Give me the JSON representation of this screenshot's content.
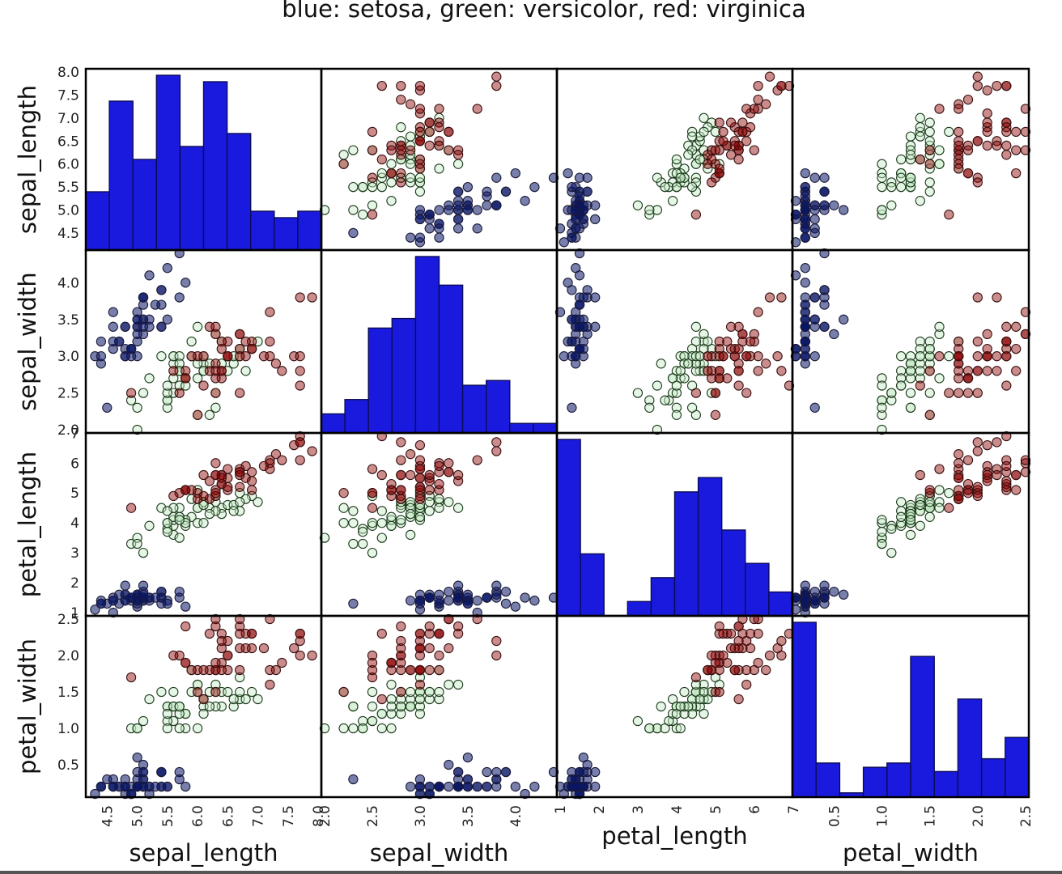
{
  "chart_data": {
    "type": "scatter",
    "title": "blue: setosa, green: versicolor, red: virginica",
    "variables": [
      "sepal_length",
      "sepal_width",
      "petal_length",
      "petal_width"
    ],
    "species_colors": {
      "setosa": "#0a1666",
      "versicolor": "#1f8a1f",
      "virginica": "#8b0000"
    },
    "histogram_color": "#1a1adf",
    "ranges": [
      [
        4.2,
        8.0
      ],
      [
        2.0,
        4.4
      ],
      [
        1.0,
        6.9
      ],
      [
        0.1,
        2.5
      ]
    ],
    "ticks": [
      [
        "4.5",
        "5.0",
        "5.5",
        "6.0",
        "6.5",
        "7.0",
        "7.5",
        "8.0"
      ],
      [
        "2.0",
        "2.5",
        "3.0",
        "3.5",
        "4.0"
      ],
      [
        "1",
        "2",
        "3",
        "4",
        "5",
        "6",
        "7"
      ],
      [
        "0.5",
        "1.0",
        "1.5",
        "2.0",
        "2.5"
      ]
    ],
    "histograms": [
      {
        "variable": "sepal_length",
        "counts": [
          9,
          23,
          14,
          27,
          16,
          26,
          18,
          6,
          5,
          6
        ]
      },
      {
        "variable": "sepal_width",
        "counts": [
          4,
          7,
          22,
          24,
          37,
          31,
          10,
          11,
          2,
          2
        ]
      },
      {
        "variable": "petal_length",
        "counts": [
          37,
          13,
          0,
          3,
          8,
          26,
          29,
          18,
          11,
          5
        ]
      },
      {
        "variable": "petal_width",
        "counts": [
          41,
          8,
          1,
          7,
          8,
          33,
          6,
          23,
          9,
          14
        ]
      }
    ],
    "points": {
      "setosa": [
        [
          5.1,
          3.5,
          1.4,
          0.2
        ],
        [
          4.9,
          3.0,
          1.4,
          0.2
        ],
        [
          4.7,
          3.2,
          1.3,
          0.2
        ],
        [
          4.6,
          3.1,
          1.5,
          0.2
        ],
        [
          5.0,
          3.6,
          1.4,
          0.2
        ],
        [
          5.4,
          3.9,
          1.7,
          0.4
        ],
        [
          4.6,
          3.4,
          1.4,
          0.3
        ],
        [
          5.0,
          3.4,
          1.5,
          0.2
        ],
        [
          4.4,
          2.9,
          1.4,
          0.2
        ],
        [
          4.9,
          3.1,
          1.5,
          0.1
        ],
        [
          5.4,
          3.7,
          1.5,
          0.2
        ],
        [
          4.8,
          3.4,
          1.6,
          0.2
        ],
        [
          4.8,
          3.0,
          1.4,
          0.1
        ],
        [
          4.3,
          3.0,
          1.1,
          0.1
        ],
        [
          5.8,
          4.0,
          1.2,
          0.2
        ],
        [
          5.7,
          4.4,
          1.5,
          0.4
        ],
        [
          5.4,
          3.9,
          1.3,
          0.4
        ],
        [
          5.1,
          3.5,
          1.4,
          0.3
        ],
        [
          5.7,
          3.8,
          1.7,
          0.3
        ],
        [
          5.1,
          3.8,
          1.5,
          0.3
        ],
        [
          5.4,
          3.4,
          1.7,
          0.2
        ],
        [
          5.1,
          3.7,
          1.5,
          0.4
        ],
        [
          4.6,
          3.6,
          1.0,
          0.2
        ],
        [
          5.1,
          3.3,
          1.7,
          0.5
        ],
        [
          4.8,
          3.4,
          1.9,
          0.2
        ],
        [
          5.0,
          3.0,
          1.6,
          0.2
        ],
        [
          5.0,
          3.4,
          1.6,
          0.4
        ],
        [
          5.2,
          3.5,
          1.5,
          0.2
        ],
        [
          5.2,
          3.4,
          1.4,
          0.2
        ],
        [
          4.7,
          3.2,
          1.6,
          0.2
        ],
        [
          4.8,
          3.1,
          1.6,
          0.2
        ],
        [
          5.4,
          3.4,
          1.5,
          0.4
        ],
        [
          5.2,
          4.1,
          1.5,
          0.1
        ],
        [
          5.5,
          4.2,
          1.4,
          0.2
        ],
        [
          4.9,
          3.1,
          1.5,
          0.1
        ],
        [
          5.0,
          3.2,
          1.2,
          0.2
        ],
        [
          5.5,
          3.5,
          1.3,
          0.2
        ],
        [
          4.9,
          3.1,
          1.5,
          0.1
        ],
        [
          4.4,
          3.0,
          1.3,
          0.2
        ],
        [
          5.1,
          3.4,
          1.5,
          0.2
        ],
        [
          5.0,
          3.5,
          1.3,
          0.3
        ],
        [
          4.5,
          2.3,
          1.3,
          0.3
        ],
        [
          4.4,
          3.2,
          1.3,
          0.2
        ],
        [
          5.0,
          3.5,
          1.6,
          0.6
        ],
        [
          5.1,
          3.8,
          1.9,
          0.4
        ],
        [
          4.8,
          3.0,
          1.4,
          0.3
        ],
        [
          5.1,
          3.8,
          1.6,
          0.2
        ],
        [
          4.6,
          3.2,
          1.4,
          0.2
        ],
        [
          5.3,
          3.7,
          1.5,
          0.2
        ],
        [
          5.0,
          3.3,
          1.4,
          0.2
        ]
      ],
      "versicolor": [
        [
          7.0,
          3.2,
          4.7,
          1.4
        ],
        [
          6.4,
          3.2,
          4.5,
          1.5
        ],
        [
          6.9,
          3.1,
          4.9,
          1.5
        ],
        [
          5.5,
          2.3,
          4.0,
          1.3
        ],
        [
          6.5,
          2.8,
          4.6,
          1.5
        ],
        [
          5.7,
          2.8,
          4.5,
          1.3
        ],
        [
          6.3,
          3.3,
          4.7,
          1.6
        ],
        [
          4.9,
          2.4,
          3.3,
          1.0
        ],
        [
          6.6,
          2.9,
          4.6,
          1.3
        ],
        [
          5.2,
          2.7,
          3.9,
          1.4
        ],
        [
          5.0,
          2.0,
          3.5,
          1.0
        ],
        [
          5.9,
          3.0,
          4.2,
          1.5
        ],
        [
          6.0,
          2.2,
          4.0,
          1.0
        ],
        [
          6.1,
          2.9,
          4.7,
          1.4
        ],
        [
          5.6,
          2.9,
          3.6,
          1.3
        ],
        [
          6.7,
          3.1,
          4.4,
          1.4
        ],
        [
          5.6,
          3.0,
          4.5,
          1.5
        ],
        [
          5.8,
          2.7,
          4.1,
          1.0
        ],
        [
          6.2,
          2.2,
          4.5,
          1.5
        ],
        [
          5.6,
          2.5,
          3.9,
          1.1
        ],
        [
          5.9,
          3.2,
          4.8,
          1.8
        ],
        [
          6.1,
          2.8,
          4.0,
          1.3
        ],
        [
          6.3,
          2.5,
          4.9,
          1.5
        ],
        [
          6.1,
          2.8,
          4.7,
          1.2
        ],
        [
          6.4,
          2.9,
          4.3,
          1.3
        ],
        [
          6.6,
          3.0,
          4.4,
          1.4
        ],
        [
          6.8,
          2.8,
          4.8,
          1.4
        ],
        [
          6.7,
          3.0,
          5.0,
          1.7
        ],
        [
          6.0,
          2.9,
          4.5,
          1.5
        ],
        [
          5.7,
          2.6,
          3.5,
          1.0
        ],
        [
          5.5,
          2.4,
          3.8,
          1.1
        ],
        [
          5.5,
          2.4,
          3.7,
          1.0
        ],
        [
          5.8,
          2.7,
          3.9,
          1.2
        ],
        [
          6.0,
          2.7,
          5.1,
          1.6
        ],
        [
          5.4,
          3.0,
          4.5,
          1.5
        ],
        [
          6.0,
          3.4,
          4.5,
          1.6
        ],
        [
          6.7,
          3.1,
          4.7,
          1.5
        ],
        [
          6.3,
          2.3,
          4.4,
          1.3
        ],
        [
          5.6,
          3.0,
          4.1,
          1.3
        ],
        [
          5.5,
          2.5,
          4.0,
          1.3
        ],
        [
          5.5,
          2.6,
          4.4,
          1.2
        ],
        [
          6.1,
          3.0,
          4.6,
          1.4
        ],
        [
          5.8,
          2.6,
          4.0,
          1.2
        ],
        [
          5.0,
          2.3,
          3.3,
          1.0
        ],
        [
          5.6,
          2.7,
          4.2,
          1.3
        ],
        [
          5.7,
          3.0,
          4.2,
          1.2
        ],
        [
          5.7,
          2.9,
          4.2,
          1.3
        ],
        [
          6.2,
          2.9,
          4.3,
          1.3
        ],
        [
          5.1,
          2.5,
          3.0,
          1.1
        ],
        [
          5.7,
          2.8,
          4.1,
          1.3
        ]
      ],
      "virginica": [
        [
          6.3,
          3.3,
          6.0,
          2.5
        ],
        [
          5.8,
          2.7,
          5.1,
          1.9
        ],
        [
          7.1,
          3.0,
          5.9,
          2.1
        ],
        [
          6.3,
          2.9,
          5.6,
          1.8
        ],
        [
          6.5,
          3.0,
          5.8,
          2.2
        ],
        [
          7.6,
          3.0,
          6.6,
          2.1
        ],
        [
          4.9,
          2.5,
          4.5,
          1.7
        ],
        [
          7.3,
          2.9,
          6.3,
          1.8
        ],
        [
          6.7,
          2.5,
          5.8,
          1.8
        ],
        [
          7.2,
          3.6,
          6.1,
          2.5
        ],
        [
          6.5,
          3.2,
          5.1,
          2.0
        ],
        [
          6.4,
          2.7,
          5.3,
          1.9
        ],
        [
          6.8,
          3.0,
          5.5,
          2.1
        ],
        [
          5.7,
          2.5,
          5.0,
          2.0
        ],
        [
          5.8,
          2.8,
          5.1,
          2.4
        ],
        [
          6.4,
          3.2,
          5.3,
          2.3
        ],
        [
          6.5,
          3.0,
          5.5,
          1.8
        ],
        [
          7.7,
          3.8,
          6.7,
          2.2
        ],
        [
          7.7,
          2.6,
          6.9,
          2.3
        ],
        [
          6.0,
          2.2,
          5.0,
          1.5
        ],
        [
          6.9,
          3.2,
          5.7,
          2.3
        ],
        [
          5.6,
          2.8,
          4.9,
          2.0
        ],
        [
          7.7,
          2.8,
          6.7,
          2.0
        ],
        [
          6.3,
          2.7,
          4.9,
          1.8
        ],
        [
          6.7,
          3.3,
          5.7,
          2.1
        ],
        [
          7.2,
          3.2,
          6.0,
          1.8
        ],
        [
          6.2,
          2.8,
          4.8,
          1.8
        ],
        [
          6.1,
          3.0,
          4.9,
          1.8
        ],
        [
          6.4,
          2.8,
          5.6,
          2.1
        ],
        [
          7.2,
          3.0,
          5.8,
          1.6
        ],
        [
          7.4,
          2.8,
          6.1,
          1.9
        ],
        [
          7.9,
          3.8,
          6.4,
          2.0
        ],
        [
          6.4,
          2.8,
          5.6,
          2.2
        ],
        [
          6.3,
          2.8,
          5.1,
          1.5
        ],
        [
          6.1,
          2.6,
          5.6,
          1.4
        ],
        [
          7.7,
          3.0,
          6.1,
          2.3
        ],
        [
          6.3,
          3.4,
          5.6,
          2.4
        ],
        [
          6.4,
          3.1,
          5.5,
          1.8
        ],
        [
          6.0,
          3.0,
          4.8,
          1.8
        ],
        [
          6.9,
          3.1,
          5.4,
          2.1
        ],
        [
          6.7,
          3.1,
          5.6,
          2.4
        ],
        [
          6.9,
          3.1,
          5.1,
          2.3
        ],
        [
          5.8,
          2.7,
          5.1,
          1.9
        ],
        [
          6.8,
          3.2,
          5.9,
          2.3
        ],
        [
          6.7,
          3.3,
          5.7,
          2.5
        ],
        [
          6.7,
          3.0,
          5.2,
          2.3
        ],
        [
          6.3,
          2.5,
          5.0,
          1.9
        ],
        [
          6.5,
          3.0,
          5.2,
          2.0
        ],
        [
          6.2,
          3.4,
          5.4,
          2.3
        ],
        [
          5.9,
          3.0,
          5.1,
          1.8
        ]
      ]
    }
  }
}
